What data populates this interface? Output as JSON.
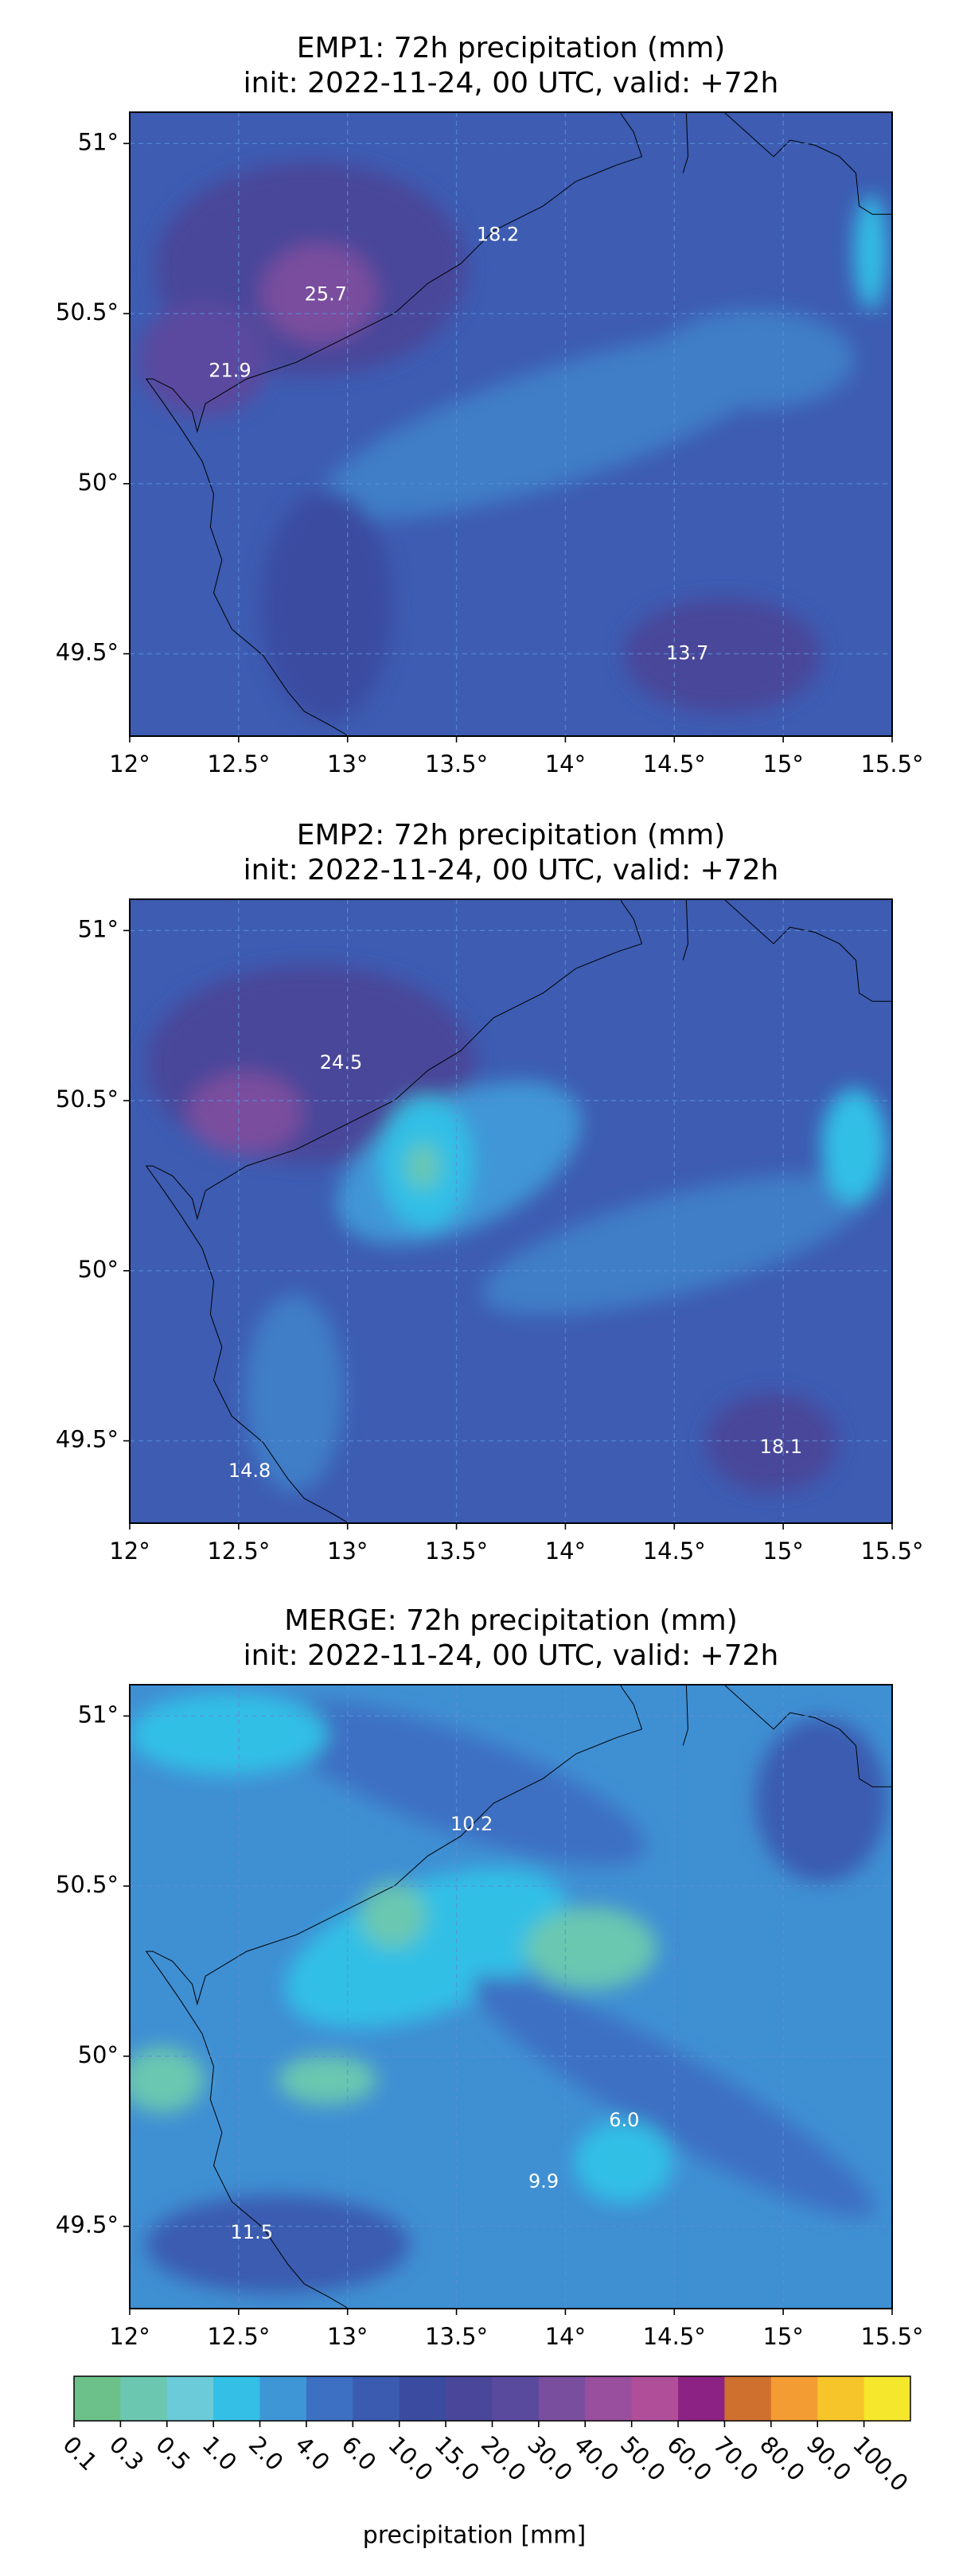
{
  "chart_data": [
    {
      "type": "map",
      "title": "EMP1: 72h precipitation (mm)",
      "subtitle": "init: 2022-11-24, 00 UTC, valid: +72h",
      "xlim": [
        12,
        15.5
      ],
      "ylim": [
        49.258,
        51.092
      ],
      "xticks": [
        {
          "value": 12,
          "label": "12°"
        },
        {
          "value": 12.5,
          "label": "12.5°"
        },
        {
          "value": 13,
          "label": "13°"
        },
        {
          "value": 13.5,
          "label": "13.5°"
        },
        {
          "value": 14,
          "label": "14°"
        },
        {
          "value": 14.5,
          "label": "14.5°"
        },
        {
          "value": 15,
          "label": "15°"
        },
        {
          "value": 15.5,
          "label": "15.5°"
        }
      ],
      "yticks": [
        {
          "value": 49.5,
          "label": "49.5°"
        },
        {
          "value": 50,
          "label": "50°"
        },
        {
          "value": 50.5,
          "label": "50.5°"
        },
        {
          "value": 51,
          "label": "51°"
        }
      ],
      "grid": true,
      "annotations": [
        {
          "x": 13.69,
          "y": 50.73,
          "label": "18.2"
        },
        {
          "x": 12.9,
          "y": 50.555,
          "label": "25.7"
        },
        {
          "x": 12.46,
          "y": 50.33,
          "label": "21.9"
        },
        {
          "x": 14.56,
          "y": 49.5,
          "label": "13.7"
        }
      ]
    },
    {
      "type": "map",
      "title": "EMP2: 72h precipitation (mm)",
      "subtitle": "init: 2022-11-24, 00 UTC, valid: +72h",
      "xlim": [
        12,
        15.5
      ],
      "ylim": [
        49.258,
        51.092
      ],
      "xticks": [
        {
          "value": 12,
          "label": "12°"
        },
        {
          "value": 12.5,
          "label": "12.5°"
        },
        {
          "value": 13,
          "label": "13°"
        },
        {
          "value": 13.5,
          "label": "13.5°"
        },
        {
          "value": 14,
          "label": "14°"
        },
        {
          "value": 14.5,
          "label": "14.5°"
        },
        {
          "value": 15,
          "label": "15°"
        },
        {
          "value": 15.5,
          "label": "15.5°"
        }
      ],
      "yticks": [
        {
          "value": 49.5,
          "label": "49.5°"
        },
        {
          "value": 50,
          "label": "50°"
        },
        {
          "value": 50.5,
          "label": "50.5°"
        },
        {
          "value": 51,
          "label": "51°"
        }
      ],
      "grid": true,
      "annotations": [
        {
          "x": 12.97,
          "y": 50.61,
          "label": "24.5"
        },
        {
          "x": 14.99,
          "y": 49.48,
          "label": "18.1"
        },
        {
          "x": 12.55,
          "y": 49.41,
          "label": "14.8"
        }
      ]
    },
    {
      "type": "map",
      "title": "MERGE: 72h precipitation (mm)",
      "subtitle": "init: 2022-11-24, 00 UTC, valid: +72h",
      "xlim": [
        12,
        15.5
      ],
      "ylim": [
        49.258,
        51.092
      ],
      "xticks": [
        {
          "value": 12,
          "label": "12°"
        },
        {
          "value": 12.5,
          "label": "12.5°"
        },
        {
          "value": 13,
          "label": "13°"
        },
        {
          "value": 13.5,
          "label": "13.5°"
        },
        {
          "value": 14,
          "label": "14°"
        },
        {
          "value": 14.5,
          "label": "14.5°"
        },
        {
          "value": 15,
          "label": "15°"
        },
        {
          "value": 15.5,
          "label": "15.5°"
        }
      ],
      "yticks": [
        {
          "value": 49.5,
          "label": "49.5°"
        },
        {
          "value": 50,
          "label": "50°"
        },
        {
          "value": 50.5,
          "label": "50.5°"
        },
        {
          "value": 51,
          "label": "51°"
        }
      ],
      "grid": true,
      "annotations": [
        {
          "x": 13.57,
          "y": 50.68,
          "label": "10.2"
        },
        {
          "x": 14.27,
          "y": 49.81,
          "label": "6.0"
        },
        {
          "x": 13.9,
          "y": 49.63,
          "label": "9.9"
        },
        {
          "x": 12.56,
          "y": 49.48,
          "label": "11.5"
        }
      ]
    }
  ],
  "colorbar": {
    "label": "precipitation [mm]",
    "levels": [
      0.1,
      0.3,
      0.5,
      {
        "value": 1,
        "label": "1.0"
      },
      {
        "value": 2,
        "label": "2.0"
      },
      {
        "value": 4,
        "label": "4.0"
      },
      {
        "value": 6,
        "label": "6.0"
      },
      {
        "value": 10,
        "label": "10.0"
      },
      {
        "value": 15,
        "label": "15.0"
      },
      {
        "value": 20,
        "label": "20.0"
      },
      {
        "value": 30,
        "label": "30.0"
      },
      {
        "value": 40,
        "label": "40.0"
      },
      {
        "value": 50,
        "label": "50.0"
      },
      {
        "value": 60,
        "label": "60.0"
      },
      {
        "value": 70,
        "label": "70.0"
      },
      {
        "value": 80,
        "label": "80.0"
      },
      {
        "value": 90,
        "label": "90.0"
      },
      {
        "value": 100,
        "label": "100.0"
      }
    ],
    "colors": [
      "#6cc08a",
      "#6bc7b0",
      "#6ccbd9",
      "#33bfe6",
      "#3f96d6",
      "#3d6fc2",
      "#3a5bb0",
      "#3a4ba0",
      "#4a479a",
      "#5a4a9e",
      "#7a4e9e",
      "#9a4f9e",
      "#b04e9a",
      "#8c2384",
      "#d0702e",
      "#f29c33",
      "#f5c52a",
      "#f5e72b"
    ]
  }
}
